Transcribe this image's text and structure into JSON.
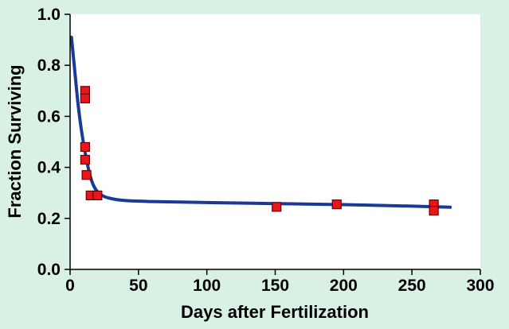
{
  "colors": {
    "background": "#d9f0e4",
    "plot_background": "#ffffff",
    "curve": "#1a3a9a",
    "marker_fill": "#e8161b",
    "marker_stroke": "#6b0000",
    "axis": "#000000"
  },
  "chart_data": {
    "type": "scatter",
    "title": "",
    "xlabel": "Days after Fertilization",
    "ylabel": "Fraction Surviving",
    "xlim": [
      0,
      300
    ],
    "ylim": [
      0,
      1.0
    ],
    "x_ticks": [
      0,
      50,
      100,
      150,
      200,
      250,
      300
    ],
    "y_ticks": [
      0.0,
      0.2,
      0.4,
      0.6,
      0.8,
      1.0
    ],
    "x_tick_labels": [
      "0",
      "50",
      "100",
      "150",
      "200",
      "250",
      "300"
    ],
    "y_tick_labels": [
      "0.0",
      "0.2",
      "0.4",
      "0.6",
      "0.8",
      "1.0"
    ],
    "grid": false,
    "series": [
      {
        "type": "scatter",
        "marker": "square",
        "points": [
          {
            "x": 11,
            "y": 0.7
          },
          {
            "x": 11,
            "y": 0.67
          },
          {
            "x": 11,
            "y": 0.48
          },
          {
            "x": 11,
            "y": 0.43
          },
          {
            "x": 12,
            "y": 0.37
          },
          {
            "x": 15,
            "y": 0.29
          },
          {
            "x": 20,
            "y": 0.29
          },
          {
            "x": 151,
            "y": 0.245
          },
          {
            "x": 195,
            "y": 0.255
          },
          {
            "x": 266,
            "y": 0.255
          },
          {
            "x": 266,
            "y": 0.23
          }
        ]
      },
      {
        "type": "line",
        "smooth": true,
        "points": [
          {
            "x": 1,
            "y": 0.91
          },
          {
            "x": 3,
            "y": 0.8
          },
          {
            "x": 6,
            "y": 0.64
          },
          {
            "x": 9,
            "y": 0.52
          },
          {
            "x": 12,
            "y": 0.43
          },
          {
            "x": 15,
            "y": 0.36
          },
          {
            "x": 18,
            "y": 0.32
          },
          {
            "x": 22,
            "y": 0.295
          },
          {
            "x": 28,
            "y": 0.28
          },
          {
            "x": 40,
            "y": 0.27
          },
          {
            "x": 60,
            "y": 0.266
          },
          {
            "x": 100,
            "y": 0.262
          },
          {
            "x": 150,
            "y": 0.258
          },
          {
            "x": 200,
            "y": 0.254
          },
          {
            "x": 250,
            "y": 0.248
          },
          {
            "x": 278,
            "y": 0.244
          }
        ]
      }
    ]
  }
}
